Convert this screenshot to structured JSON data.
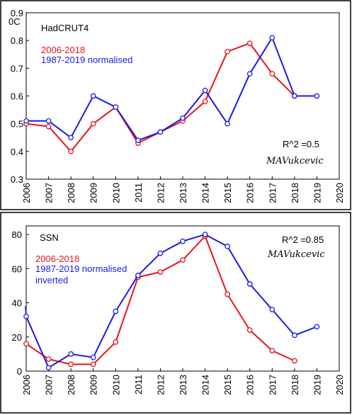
{
  "colors": {
    "series_a": "#e8141b",
    "series_b": "#1a1ae6",
    "frame": "#000000"
  },
  "chart_data": [
    {
      "type": "line",
      "title": "HadCRUT4",
      "unit_label": "0C",
      "annotation": "R^2 =0.5",
      "signature": "MAVukcevic",
      "xlim": [
        2006,
        2020
      ],
      "ylim": [
        0.3,
        0.9
      ],
      "x_ticks": [
        "2006",
        "2007",
        "2008",
        "2009",
        "2010",
        "2011",
        "2012",
        "2013",
        "2014",
        "2015",
        "2016",
        "2017",
        "2018",
        "2019",
        "2020"
      ],
      "y_ticks": [
        "0.3",
        "0.4",
        "0.5",
        "0.6",
        "0.7",
        "0.8",
        "0.9"
      ],
      "grid": false,
      "series": [
        {
          "name": "2006-2018",
          "color": "#e8141b",
          "x": [
            2006,
            2007,
            2008,
            2009,
            2010,
            2011,
            2012,
            2013,
            2014,
            2015,
            2016,
            2017,
            2018
          ],
          "y": [
            0.5,
            0.49,
            0.4,
            0.5,
            0.56,
            0.43,
            0.47,
            0.51,
            0.58,
            0.76,
            0.79,
            0.68,
            0.6
          ]
        },
        {
          "name": "1987-2019 normalised",
          "color": "#1a1ae6",
          "x": [
            2006,
            2007,
            2008,
            2009,
            2010,
            2011,
            2012,
            2013,
            2014,
            2015,
            2016,
            2017,
            2018,
            2019
          ],
          "y": [
            0.51,
            0.51,
            0.45,
            0.6,
            0.56,
            0.44,
            0.47,
            0.52,
            0.62,
            0.5,
            0.68,
            0.81,
            0.6,
            0.6
          ]
        }
      ]
    },
    {
      "type": "line",
      "title": "SSN",
      "annotation": "R^2 =0.85",
      "signature": "MAVukcevic",
      "xlim": [
        2006,
        2020
      ],
      "ylim": [
        0,
        85
      ],
      "x_ticks": [
        "2006",
        "2007",
        "2008",
        "2009",
        "2010",
        "2011",
        "2012",
        "2013",
        "2014",
        "2015",
        "2016",
        "2017",
        "2018",
        "2019",
        "2020"
      ],
      "y_ticks": [
        "0",
        "20",
        "40",
        "60",
        "80"
      ],
      "grid": false,
      "series": [
        {
          "name": "2006-2018",
          "color": "#e8141b",
          "x": [
            2006,
            2007,
            2008,
            2009,
            2010,
            2011,
            2012,
            2013,
            2014,
            2015,
            2016,
            2017,
            2018
          ],
          "y": [
            16,
            7,
            4,
            4,
            17,
            55,
            58,
            65,
            79,
            45,
            24,
            12,
            6
          ]
        },
        {
          "name": "1987-2019 normalised\ninverted",
          "label_lines": [
            "1987-2019 normalised",
            "inverted"
          ],
          "color": "#1a1ae6",
          "start_x": 2005.97,
          "start_y": 38,
          "x": [
            2006,
            2007,
            2008,
            2009,
            2010,
            2011,
            2012,
            2013,
            2014,
            2015,
            2016,
            2017,
            2018,
            2019
          ],
          "y": [
            32,
            2,
            10,
            8,
            35,
            56,
            69,
            76,
            80,
            73,
            51,
            36,
            21,
            26
          ]
        }
      ]
    }
  ]
}
